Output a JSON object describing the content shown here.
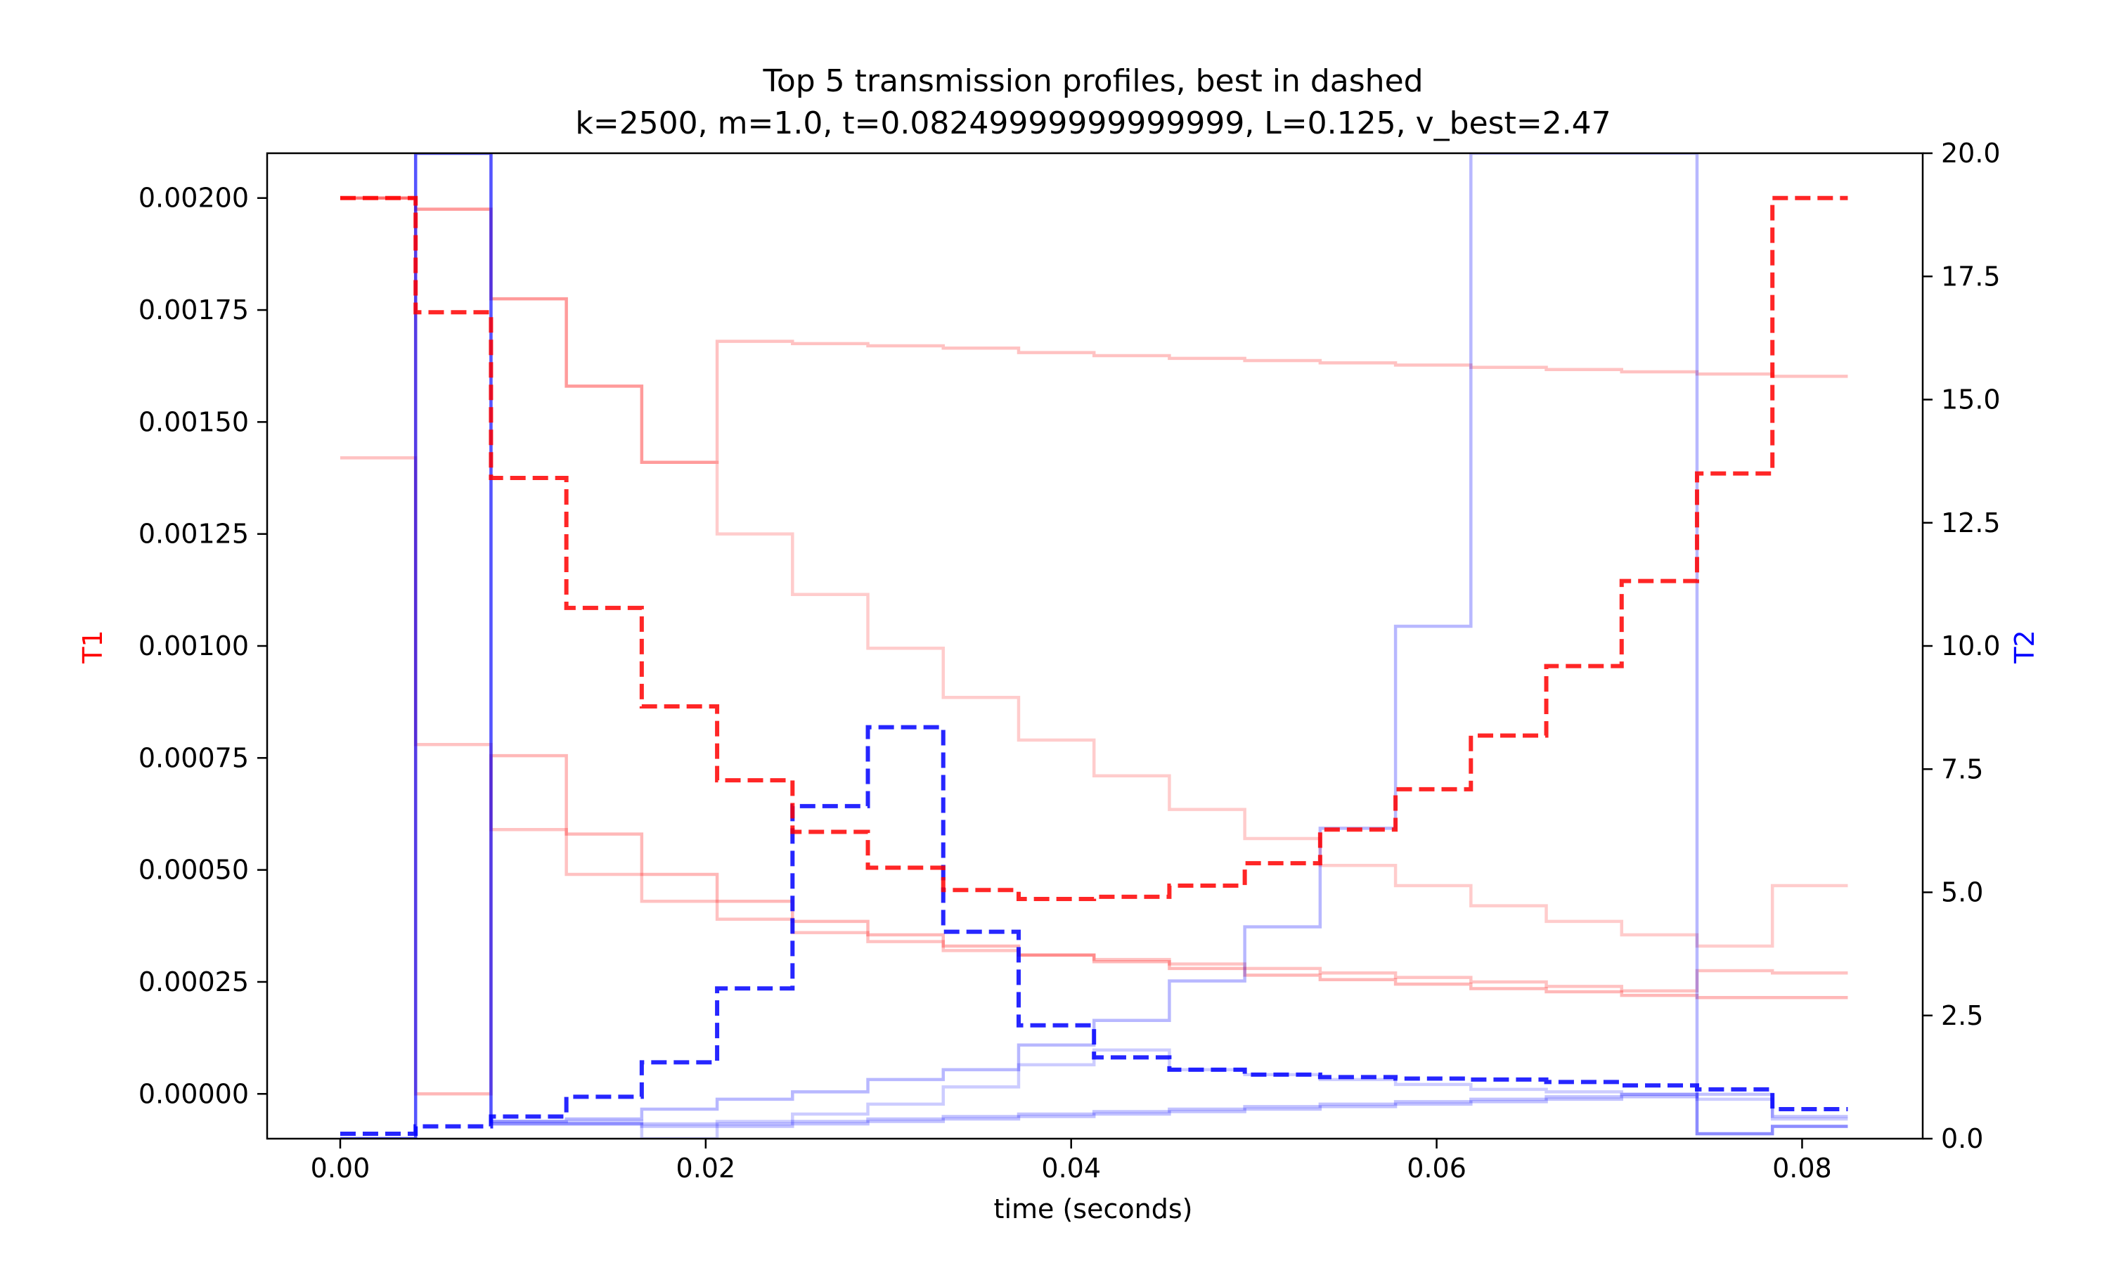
{
  "chart_data": {
    "type": "line",
    "step": "post",
    "title": "Top 5 transmission profiles, best in dashed",
    "subtitle": "k=2500, m=1.0, t=0.08249999999999999, L=0.125, v_best=2.47",
    "xlabel": "time (seconds)",
    "ylabel_left": "T1",
    "ylabel_right": "T2",
    "xlim": [
      -0.004,
      0.0866
    ],
    "ylim_left": [
      -0.0001,
      0.0021
    ],
    "ylim_right": [
      0.0,
      20.0
    ],
    "xticks": [
      0.0,
      0.02,
      0.04,
      0.06,
      0.08
    ],
    "xtick_labels": [
      "0.00",
      "0.02",
      "0.04",
      "0.06",
      "0.08"
    ],
    "yticks_left": [
      0.0,
      0.00025,
      0.0005,
      0.00075,
      0.001,
      0.00125,
      0.0015,
      0.00175,
      0.002
    ],
    "ytick_labels_left": [
      "0.00000",
      "0.00025",
      "0.00050",
      "0.00075",
      "0.00100",
      "0.00125",
      "0.00150",
      "0.00175",
      "0.00200"
    ],
    "yticks_right": [
      0.0,
      2.5,
      5.0,
      7.5,
      10.0,
      12.5,
      15.0,
      17.5,
      20.0
    ],
    "ytick_labels_right": [
      "0.0",
      "2.5",
      "5.0",
      "7.5",
      "10.0",
      "12.5",
      "15.0",
      "17.5",
      "20.0"
    ],
    "grid": false,
    "colors": {
      "t1": "#ff0000",
      "t2": "#0000ff",
      "axis": "#000000"
    },
    "x": [
      0.0,
      0.004125,
      0.00825,
      0.012375,
      0.0165,
      0.020625,
      0.02475,
      0.028875,
      0.033,
      0.037125,
      0.04125,
      0.045375,
      0.0495,
      0.053625,
      0.05775,
      0.061875,
      0.066,
      0.070125,
      0.07425,
      0.078375,
      0.0825
    ],
    "t1_series": [
      {
        "best": true,
        "values": [
          0.002,
          0.001745,
          0.001375,
          0.001085,
          0.000865,
          0.0007,
          0.000585,
          0.000505,
          0.000455,
          0.000435,
          0.00044,
          0.000465,
          0.000515,
          0.00059,
          0.00068,
          0.0008,
          0.000955,
          0.001145,
          0.001385,
          0.002,
          0.002
        ]
      },
      {
        "best": false,
        "values": [
          0.00142,
          0.00078,
          0.00059,
          0.00049,
          0.00043,
          0.00039,
          0.00036,
          0.00034,
          0.00032,
          0.00031,
          0.0003,
          0.00029,
          0.00028,
          0.00027,
          0.00026,
          0.00025,
          0.00024,
          0.00023,
          0.000275,
          0.00027,
          0.00027
        ]
      },
      {
        "best": false,
        "values": [
          0.002,
          0.0,
          0.000755,
          0.00058,
          0.00049,
          0.00043,
          0.000385,
          0.000355,
          0.00033,
          0.00031,
          0.000295,
          0.00028,
          0.000265,
          0.000255,
          0.000245,
          0.000235,
          0.000228,
          0.00022,
          0.000215,
          0.000215,
          0.000215
        ]
      },
      {
        "best": false,
        "values": [
          0.002,
          0.001975,
          0.001775,
          0.00158,
          0.00141,
          0.00125,
          0.001115,
          0.000995,
          0.000885,
          0.00079,
          0.00071,
          0.000635,
          0.00057,
          0.00051,
          0.000465,
          0.00042,
          0.000385,
          0.000355,
          0.00033,
          0.000465,
          0.000465
        ]
      },
      {
        "best": false,
        "values": [
          0.002,
          0.001975,
          0.001775,
          0.00158,
          0.00141,
          0.00168,
          0.001675,
          0.00167,
          0.001665,
          0.001655,
          0.001648,
          0.001642,
          0.001637,
          0.001632,
          0.001627,
          0.001622,
          0.001617,
          0.001612,
          0.001607,
          0.001602,
          0.001602
        ]
      }
    ],
    "t2_series": [
      {
        "best": true,
        "values": [
          0.1,
          0.25,
          0.45,
          0.85,
          1.55,
          3.05,
          6.75,
          8.35,
          4.2,
          2.3,
          1.65,
          1.4,
          1.3,
          1.25,
          1.22,
          1.2,
          1.15,
          1.08,
          1.0,
          0.6,
          0.6
        ]
      },
      {
        "best": false,
        "values": [
          0.0,
          20.0,
          0.3,
          0.3,
          0.3,
          0.3,
          0.35,
          0.4,
          0.45,
          0.5,
          0.55,
          0.6,
          0.65,
          0.7,
          0.75,
          0.8,
          0.85,
          0.9,
          0.1,
          0.25,
          0.25
        ]
      },
      {
        "best": false,
        "values": [
          0.0,
          20.0,
          0.35,
          0.4,
          0.6,
          0.8,
          0.95,
          1.2,
          1.4,
          1.9,
          2.4,
          3.2,
          4.3,
          6.3,
          10.4,
          20.0,
          20.0,
          20.0,
          0.1,
          0.25,
          0.25
        ]
      },
      {
        "best": false,
        "values": [
          0.0,
          20.0,
          0.35,
          0.35,
          0.0,
          0.35,
          0.5,
          0.7,
          1.05,
          1.5,
          1.8,
          1.4,
          1.3,
          1.2,
          1.1,
          1.0,
          0.95,
          0.9,
          0.8,
          0.4,
          0.4
        ]
      },
      {
        "best": false,
        "values": [
          0.0,
          20.0,
          0.3,
          0.3,
          0.25,
          0.25,
          0.3,
          0.35,
          0.4,
          0.45,
          0.5,
          0.55,
          0.6,
          0.65,
          0.7,
          0.75,
          0.8,
          0.85,
          0.9,
          0.45,
          0.45
        ]
      }
    ]
  }
}
